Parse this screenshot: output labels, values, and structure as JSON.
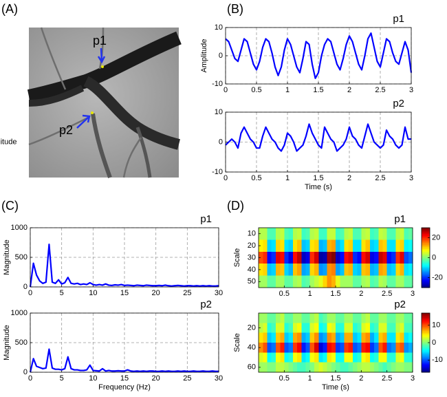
{
  "chart_data": [
    {
      "type": "image",
      "panel": "(A)",
      "points": [
        "p1",
        "p2"
      ]
    },
    {
      "type": "line",
      "panel": "(B)",
      "title": "p1",
      "ylabel": "Amplitude",
      "x": [
        0,
        0.05,
        0.1,
        0.15,
        0.2,
        0.25,
        0.3,
        0.35,
        0.4,
        0.45,
        0.5,
        0.55,
        0.6,
        0.65,
        0.7,
        0.75,
        0.8,
        0.85,
        0.9,
        0.95,
        1,
        1.05,
        1.1,
        1.15,
        1.2,
        1.25,
        1.3,
        1.35,
        1.4,
        1.45,
        1.5,
        1.55,
        1.6,
        1.65,
        1.7,
        1.75,
        1.8,
        1.85,
        1.9,
        1.95,
        2,
        2.05,
        2.1,
        2.15,
        2.2,
        2.25,
        2.3,
        2.35,
        2.4,
        2.45,
        2.5,
        2.55,
        2.6,
        2.65,
        2.7,
        2.75,
        2.8,
        2.85,
        2.9,
        2.95,
        3
      ],
      "series": [
        {
          "color": "#0000ff",
          "values": [
            6,
            5,
            2,
            -1,
            -2,
            2,
            6,
            5,
            1,
            -3,
            -5,
            -2,
            3,
            6,
            5,
            1,
            -4,
            -7,
            -4,
            2,
            6,
            4,
            0,
            -4,
            -6,
            -1,
            5,
            4,
            -3,
            -8,
            -6,
            0,
            4,
            6,
            5,
            1,
            -3,
            -5,
            -1,
            4,
            7,
            5,
            1,
            -3,
            -5,
            0,
            6,
            8,
            3,
            -2,
            -4,
            1,
            6,
            5,
            1,
            -2,
            -3,
            1,
            5,
            2,
            -6
          ]
        }
      ],
      "xlim": [
        0,
        3
      ],
      "ylim": [
        -10,
        10
      ],
      "xticks": [
        0,
        0.5,
        1,
        1.5,
        2,
        2.5,
        3
      ],
      "yticks": [
        -10,
        0,
        10
      ],
      "grid": true
    },
    {
      "type": "line",
      "title": "p2",
      "ylabel": "Amplitude",
      "xlabel": "Time (s)",
      "x": [
        0,
        0.05,
        0.1,
        0.15,
        0.2,
        0.25,
        0.3,
        0.35,
        0.4,
        0.45,
        0.5,
        0.55,
        0.6,
        0.65,
        0.7,
        0.75,
        0.8,
        0.85,
        0.9,
        0.95,
        1,
        1.05,
        1.1,
        1.15,
        1.2,
        1.25,
        1.3,
        1.35,
        1.4,
        1.45,
        1.5,
        1.55,
        1.6,
        1.65,
        1.7,
        1.75,
        1.8,
        1.85,
        1.9,
        1.95,
        2,
        2.05,
        2.1,
        2.15,
        2.2,
        2.25,
        2.3,
        2.35,
        2.4,
        2.45,
        2.5,
        2.55,
        2.6,
        2.65,
        2.7,
        2.75,
        2.8,
        2.85,
        2.9,
        2.95,
        3
      ],
      "series": [
        {
          "color": "#0000ff",
          "values": [
            -1,
            0,
            1,
            0,
            -2,
            3,
            5,
            3,
            1,
            0,
            -2,
            -2,
            2,
            5,
            3,
            1,
            0,
            -2,
            -3,
            -1,
            3,
            2,
            0,
            -3,
            -2,
            -1,
            2,
            6,
            3,
            1,
            -1,
            -2,
            5,
            3,
            1,
            0,
            -3,
            -2,
            -1,
            1,
            5,
            2,
            1,
            -1,
            -2,
            2,
            6,
            3,
            0,
            -1,
            -2,
            -1,
            4,
            2,
            1,
            -1,
            -2,
            -1,
            5,
            1,
            1
          ]
        }
      ],
      "xlim": [
        0,
        3
      ],
      "ylim": [
        -10,
        10
      ],
      "xticks": [
        0,
        0.5,
        1,
        1.5,
        2,
        2.5,
        3
      ],
      "yticks": [
        -10,
        0,
        10
      ],
      "grid": true
    },
    {
      "type": "line",
      "panel": "(C)",
      "title": "p1",
      "ylabel": "Magnitude",
      "x": [
        0,
        0.5,
        1,
        1.5,
        2,
        2.5,
        3,
        3.5,
        4,
        4.5,
        5,
        5.5,
        6,
        6.5,
        7,
        7.5,
        8,
        8.5,
        9,
        9.5,
        10,
        10.5,
        11,
        11.5,
        12,
        12.5,
        13,
        13.5,
        14,
        14.5,
        15,
        15.5,
        16,
        16.5,
        17,
        17.5,
        18,
        18.5,
        19,
        19.5,
        20,
        20.5,
        21,
        21.5,
        22,
        22.5,
        23,
        23.5,
        24,
        24.5,
        25,
        25.5,
        26,
        26.5,
        27,
        27.5,
        28,
        28.5,
        29,
        29.5,
        30
      ],
      "series": [
        {
          "color": "#0000ff",
          "values": [
            0,
            400,
            200,
            100,
            60,
            80,
            720,
            80,
            60,
            120,
            50,
            70,
            160,
            60,
            50,
            60,
            40,
            50,
            40,
            70,
            40,
            30,
            40,
            30,
            50,
            30,
            25,
            35,
            30,
            40,
            25,
            30,
            25,
            20,
            30,
            25,
            20,
            30,
            25,
            20,
            20,
            25,
            20,
            30,
            20,
            15,
            20,
            25,
            20,
            15,
            20,
            20,
            15,
            20,
            15,
            20,
            15,
            20,
            15,
            15,
            20
          ]
        }
      ],
      "xlim": [
        0,
        30
      ],
      "ylim": [
        0,
        1000
      ],
      "xticks": [
        0,
        5,
        10,
        15,
        20,
        25,
        30
      ],
      "yticks": [
        0,
        500,
        1000
      ],
      "grid": true
    },
    {
      "type": "line",
      "title": "p2",
      "ylabel": "Magnitude",
      "xlabel": "Frequency (Hz)",
      "x": [
        0,
        0.5,
        1,
        1.5,
        2,
        2.5,
        3,
        3.5,
        4,
        4.5,
        5,
        5.5,
        6,
        6.5,
        7,
        7.5,
        8,
        8.5,
        9,
        9.5,
        10,
        10.5,
        11,
        11.5,
        12,
        12.5,
        13,
        13.5,
        14,
        14.5,
        15,
        15.5,
        16,
        16.5,
        17,
        17.5,
        18,
        18.5,
        19,
        19.5,
        20,
        20.5,
        21,
        21.5,
        22,
        22.5,
        23,
        23.5,
        24,
        24.5,
        25,
        25.5,
        26,
        26.5,
        27,
        27.5,
        28,
        28.5,
        29,
        29.5,
        30
      ],
      "series": [
        {
          "color": "#0000ff",
          "values": [
            0,
            230,
            100,
            80,
            60,
            70,
            390,
            70,
            50,
            50,
            40,
            60,
            260,
            60,
            40,
            40,
            30,
            30,
            40,
            120,
            30,
            25,
            20,
            60,
            20,
            30,
            20,
            20,
            25,
            20,
            20,
            40,
            20,
            15,
            20,
            15,
            20,
            15,
            20,
            20,
            15,
            15,
            20,
            15,
            20,
            15,
            15,
            20,
            15,
            20,
            15,
            15,
            20,
            15,
            15,
            20,
            15,
            15,
            20,
            15,
            15
          ]
        }
      ],
      "xlim": [
        0,
        30
      ],
      "ylim": [
        0,
        1000
      ],
      "xticks": [
        0,
        5,
        10,
        15,
        20,
        25,
        30
      ],
      "yticks": [
        0,
        500,
        1000
      ],
      "grid": true
    },
    {
      "type": "heatmap",
      "panel": "(D)",
      "title": "p1",
      "ylabel": "Scale",
      "x": [
        0.04,
        0.13,
        0.21,
        0.29,
        0.38,
        0.46,
        0.54,
        0.63,
        0.71,
        0.79,
        0.88,
        0.96,
        1.04,
        1.13,
        1.21,
        1.29,
        1.38,
        1.46,
        1.54,
        1.63,
        1.71,
        1.79,
        1.88,
        1.96,
        2.04,
        2.13,
        2.21,
        2.29,
        2.38,
        2.46,
        2.54,
        2.63,
        2.71,
        2.79,
        2.88,
        2.96
      ],
      "y": [
        10,
        20,
        30,
        40,
        50
      ],
      "z": [
        [
          3,
          3,
          -3,
          -3,
          3,
          4,
          -3,
          -4,
          3,
          4,
          -4,
          -3,
          3,
          4,
          -4,
          -4,
          4,
          4,
          -4,
          -3,
          3,
          4,
          -3,
          -3,
          3,
          4,
          -4,
          -3,
          4,
          3,
          -3,
          -3,
          3,
          4,
          -3,
          -2
        ],
        [
          8,
          9,
          -10,
          -9,
          10,
          9,
          -9,
          -10,
          9,
          11,
          -11,
          -10,
          9,
          10,
          -12,
          -11,
          12,
          13,
          -11,
          -9,
          9,
          10,
          -9,
          -9,
          9,
          11,
          -10,
          -9,
          11,
          10,
          -9,
          -9,
          9,
          10,
          -8,
          -7
        ],
        [
          18,
          20,
          -22,
          -20,
          24,
          22,
          -20,
          -24,
          22,
          26,
          -26,
          -24,
          20,
          25,
          -28,
          -27,
          28,
          30,
          -26,
          -22,
          22,
          24,
          -20,
          -22,
          22,
          25,
          -24,
          -22,
          26,
          24,
          -22,
          -20,
          20,
          24,
          -18,
          -16
        ],
        [
          9,
          10,
          -11,
          -10,
          12,
          11,
          -10,
          -12,
          11,
          13,
          -13,
          -12,
          10,
          12,
          -14,
          -13,
          14,
          15,
          -13,
          -11,
          11,
          12,
          -10,
          -11,
          11,
          12,
          -12,
          -11,
          13,
          12,
          -11,
          -10,
          10,
          12,
          -9,
          -8
        ],
        [
          2,
          2,
          -2,
          -2,
          2,
          2,
          -2,
          -2,
          2,
          3,
          -3,
          -2,
          2,
          4,
          6,
          10,
          14,
          12,
          6,
          2,
          2,
          2,
          -2,
          -2,
          2,
          3,
          -3,
          -2,
          3,
          2,
          -2,
          -2,
          2,
          2,
          -2,
          -2
        ]
      ],
      "xlim": [
        0,
        3
      ],
      "ylim": [
        5,
        55
      ],
      "y_reversed": true,
      "xticks": [
        0.5,
        1,
        1.5,
        2,
        2.5,
        3
      ],
      "yticks": [
        10,
        20,
        30,
        40,
        50
      ],
      "colormap": "jet",
      "clim": [
        -30,
        30
      ],
      "colorbar_ticks": [
        20,
        0,
        -20
      ]
    },
    {
      "type": "heatmap",
      "title": "p2",
      "ylabel": "Scale",
      "xlabel": "Time (s)",
      "x": [
        0.04,
        0.13,
        0.21,
        0.29,
        0.38,
        0.46,
        0.54,
        0.63,
        0.71,
        0.79,
        0.88,
        0.96,
        1.04,
        1.13,
        1.21,
        1.29,
        1.38,
        1.46,
        1.54,
        1.63,
        1.71,
        1.79,
        1.88,
        1.96,
        2.04,
        2.13,
        2.21,
        2.29,
        2.38,
        2.46,
        2.54,
        2.63,
        2.71,
        2.79,
        2.88,
        2.96
      ],
      "y": [
        10,
        20,
        30,
        40,
        50,
        60
      ],
      "z": [
        [
          1,
          1,
          -1,
          -1,
          1,
          2,
          -1,
          -1,
          1,
          1,
          -1,
          -1,
          1,
          2,
          -2,
          -1,
          1,
          1,
          -1,
          -1,
          1,
          1,
          -1,
          -1,
          1,
          2,
          -1,
          -1,
          1,
          1,
          -1,
          -1,
          1,
          1,
          -1,
          -1
        ],
        [
          2,
          3,
          -3,
          -2,
          3,
          3,
          -3,
          -2,
          3,
          4,
          -3,
          -3,
          3,
          4,
          -4,
          -3,
          4,
          3,
          -3,
          -3,
          3,
          3,
          -3,
          -2,
          3,
          4,
          -3,
          -2,
          3,
          3,
          -2,
          -2,
          2,
          3,
          -2,
          -2
        ],
        [
          5,
          6,
          -6,
          -5,
          6,
          7,
          -6,
          -5,
          7,
          8,
          -7,
          -6,
          6,
          8,
          -8,
          -7,
          8,
          7,
          -7,
          -6,
          7,
          7,
          -6,
          -5,
          7,
          8,
          -7,
          -5,
          6,
          7,
          -5,
          -5,
          5,
          6,
          -5,
          -4
        ],
        [
          8,
          10,
          -10,
          -9,
          10,
          12,
          -10,
          -9,
          11,
          13,
          -12,
          -10,
          10,
          14,
          -14,
          -12,
          13,
          12,
          -11,
          -10,
          11,
          12,
          -10,
          -9,
          12,
          13,
          -11,
          -9,
          10,
          12,
          -9,
          -8,
          9,
          10,
          -8,
          -7
        ],
        [
          3,
          4,
          -4,
          -3,
          4,
          5,
          -4,
          -3,
          4,
          5,
          -5,
          -4,
          4,
          5,
          -5,
          -4,
          5,
          4,
          -4,
          -4,
          4,
          4,
          -4,
          -3,
          4,
          5,
          -4,
          -3,
          4,
          4,
          -3,
          -3,
          3,
          4,
          -3,
          -3
        ],
        [
          1,
          1,
          0,
          0,
          2,
          2,
          1,
          0,
          -1,
          -2,
          -2,
          -1,
          0,
          2,
          3,
          2,
          1,
          0,
          -1,
          -2,
          -2,
          -1,
          0,
          1,
          2,
          2,
          1,
          0,
          -1,
          -2,
          -1,
          0,
          1,
          1,
          0,
          0
        ]
      ],
      "xlim": [
        0,
        3
      ],
      "ylim": [
        5,
        65
      ],
      "y_reversed": true,
      "xticks": [
        0.5,
        1,
        1.5,
        2,
        2.5,
        3
      ],
      "yticks": [
        20,
        40,
        60
      ],
      "colormap": "jet",
      "clim": [
        -17,
        17
      ],
      "colorbar_ticks": [
        10,
        0,
        -10
      ]
    }
  ]
}
